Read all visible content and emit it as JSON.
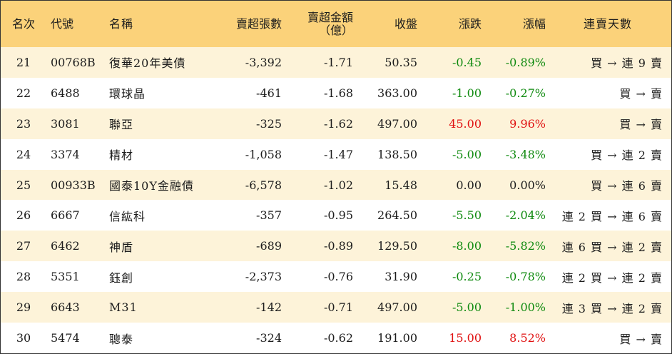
{
  "headers": {
    "rank": "名次",
    "code": "代號",
    "name": "名稱",
    "sell_shares": "賣超張數",
    "sell_amount_line1": "賣超金額",
    "sell_amount_line2": "（億）",
    "close": "收盤",
    "change": "漲跌",
    "change_pct": "漲幅",
    "days": "連賣天數"
  },
  "rows": [
    {
      "rank": "21",
      "code": "00768B",
      "name": "復華20年美債",
      "sell_shares": "-3,392",
      "sell_amount": "-1.71",
      "close": "50.35",
      "change": "-0.45",
      "change_pct": "-0.89%",
      "days": "買 → 連 9 賣",
      "trend": "neg"
    },
    {
      "rank": "22",
      "code": "6488",
      "name": "環球晶",
      "sell_shares": "-461",
      "sell_amount": "-1.68",
      "close": "363.00",
      "change": "-1.00",
      "change_pct": "-0.27%",
      "days": "買 → 賣",
      "trend": "neg"
    },
    {
      "rank": "23",
      "code": "3081",
      "name": "聯亞",
      "sell_shares": "-325",
      "sell_amount": "-1.62",
      "close": "497.00",
      "change": "45.00",
      "change_pct": "9.96%",
      "days": "買 → 賣",
      "trend": "pos"
    },
    {
      "rank": "24",
      "code": "3374",
      "name": "精材",
      "sell_shares": "-1,058",
      "sell_amount": "-1.47",
      "close": "138.50",
      "change": "-5.00",
      "change_pct": "-3.48%",
      "days": "買 → 連 2 賣",
      "trend": "neg"
    },
    {
      "rank": "25",
      "code": "00933B",
      "name": "國泰10Y金融債",
      "sell_shares": "-6,578",
      "sell_amount": "-1.02",
      "close": "15.48",
      "change": "0.00",
      "change_pct": "0.00%",
      "days": "買 → 連 6 賣",
      "trend": "flat"
    },
    {
      "rank": "26",
      "code": "6667",
      "name": "信紘科",
      "sell_shares": "-357",
      "sell_amount": "-0.95",
      "close": "264.50",
      "change": "-5.50",
      "change_pct": "-2.04%",
      "days": "連 2 買 → 連 6 賣",
      "trend": "neg"
    },
    {
      "rank": "27",
      "code": "6462",
      "name": "神盾",
      "sell_shares": "-689",
      "sell_amount": "-0.89",
      "close": "129.50",
      "change": "-8.00",
      "change_pct": "-5.82%",
      "days": "連 6 買 → 連 2 賣",
      "trend": "neg"
    },
    {
      "rank": "28",
      "code": "5351",
      "name": "鈺創",
      "sell_shares": "-2,373",
      "sell_amount": "-0.76",
      "close": "31.90",
      "change": "-0.25",
      "change_pct": "-0.78%",
      "days": "連 2 買 → 連 2 賣",
      "trend": "neg"
    },
    {
      "rank": "29",
      "code": "6643",
      "name": "M31",
      "sell_shares": "-142",
      "sell_amount": "-0.71",
      "close": "497.00",
      "change": "-5.00",
      "change_pct": "-1.00%",
      "days": "連 3 買 → 連 2 賣",
      "trend": "neg"
    },
    {
      "rank": "30",
      "code": "5474",
      "name": "聰泰",
      "sell_shares": "-324",
      "sell_amount": "-0.62",
      "close": "191.00",
      "change": "15.00",
      "change_pct": "8.52%",
      "days": "買 → 賣",
      "trend": "pos"
    }
  ],
  "colors": {
    "header_bg": "#fbd27a",
    "odd_row_bg": "#fdf3d9",
    "even_row_bg": "#ffffff",
    "up": "#e01010",
    "down": "#0f8a0f"
  }
}
